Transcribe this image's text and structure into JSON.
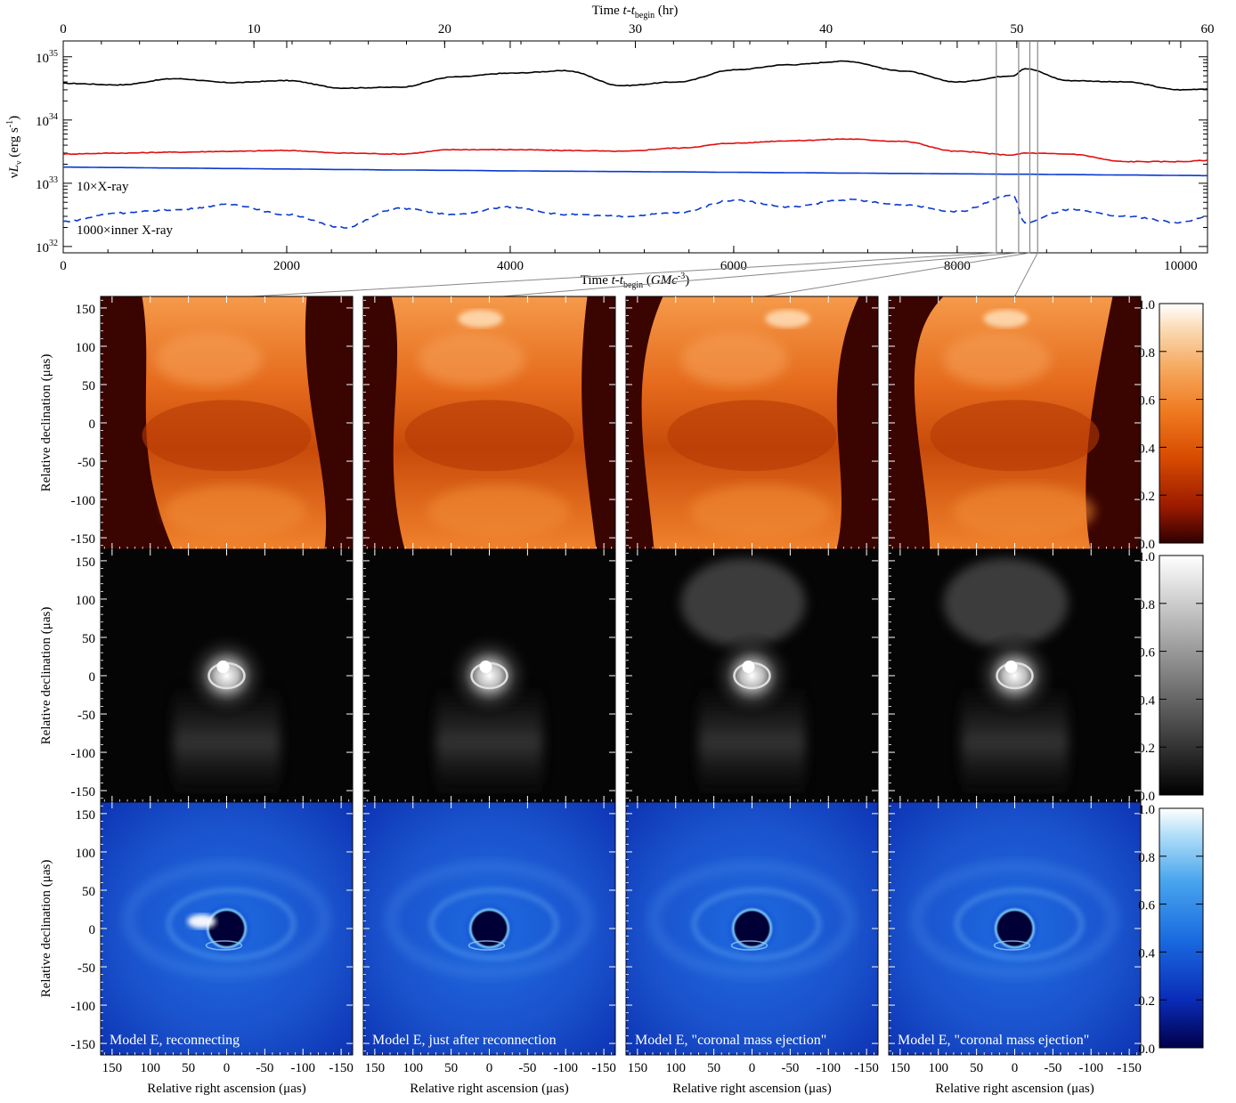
{
  "light_curve": {
    "top_axis": {
      "label_main": "Time ",
      "label_t": "t",
      "label_dash": "-",
      "label_tsub_t": "t",
      "label_sub": "begin",
      "label_unit": " (hr)",
      "ticks": [
        "0",
        "10",
        "20",
        "30",
        "40",
        "50",
        "60"
      ],
      "range": [
        0,
        60
      ]
    },
    "bottom_axis": {
      "label_main": "Time ",
      "label_t": "t",
      "label_dash": "-",
      "label_tsub_t": "t",
      "label_sub": "begin",
      "label_unit_open": " (",
      "label_GM": "GMc",
      "label_exp": "-3",
      "label_unit_close": ")",
      "ticks": [
        "0",
        "2000",
        "4000",
        "6000",
        "8000",
        "10000"
      ],
      "range": [
        0,
        10240
      ]
    },
    "y_axis": {
      "label_nu": "ν",
      "label_L": "L",
      "label_sub": "ν",
      "label_unit": " (erg s",
      "label_exp": "-1",
      "label_close": ")",
      "tick_base": [
        "10",
        "10",
        "10",
        "10"
      ],
      "tick_exp": [
        "32",
        "33",
        "34",
        "35"
      ],
      "range_log": [
        31.9,
        35.25
      ],
      "scale": "log"
    },
    "annotations": {
      "xray": "10×X-ray",
      "inner_xray": "1000×inner X-ray"
    },
    "marker_times_M": [
      8350,
      8550,
      8650,
      8720
    ],
    "series_colors": {
      "mm": "#000000",
      "ir": "#e01010",
      "xray": "#0a3ad0",
      "inner": "#0a3ad0"
    }
  },
  "panels": {
    "y_label": "Relative declination (μas)",
    "x_label": "Relative right ascension (μas)",
    "y_ticks": [
      "150",
      "100",
      "50",
      "0",
      "-50",
      "-100",
      "-150"
    ],
    "x_ticks": [
      "150",
      "100",
      "50",
      "0",
      "-50",
      "-100",
      "-150"
    ],
    "captions": [
      "Model E, reconnecting",
      "Model E, just after reconnection",
      "Model E, \"coronal mass ejection\"",
      "Model E, \"coronal mass ejection\""
    ],
    "colorbar_ticks": [
      "1.0",
      "0.8",
      "0.6",
      "0.4",
      "0.2",
      "0.0"
    ],
    "row_colormaps": [
      "hot-orange",
      "grayscale",
      "blue"
    ]
  },
  "chart_data": [
    {
      "type": "line",
      "title": "",
      "xlabel": "Time t-t_begin (GMc^-3)",
      "x2label": "Time t-t_begin (hr)",
      "ylabel": "νL_ν (erg s^-1)",
      "xlim": [
        0,
        10240
      ],
      "ylim": [
        1e+32,
        1.8e+35
      ],
      "yscale": "log",
      "grid": false,
      "x": [
        0,
        500,
        1000,
        1500,
        2000,
        2500,
        3000,
        3500,
        4000,
        4500,
        5000,
        5500,
        6000,
        6500,
        7000,
        7500,
        8000,
        8500,
        8600,
        9000,
        9500,
        10000,
        10240
      ],
      "series": [
        {
          "name": "",
          "style": "solid",
          "color": "#000000",
          "values": [
            3.8e+34,
            3.6e+34,
            4.5e+34,
            3.9e+34,
            4.2e+34,
            3.2e+34,
            3.3e+34,
            4.8e+34,
            5.5e+34,
            6e+34,
            3.5e+34,
            4e+34,
            6.2e+34,
            7.5e+34,
            8.5e+34,
            6e+34,
            4e+34,
            5e+34,
            6.5e+34,
            4.2e+34,
            4e+34,
            3e+34,
            3.1e+34
          ]
        },
        {
          "name": "",
          "style": "solid",
          "color": "#e01010",
          "values": [
            2.9e+33,
            3e+33,
            3.1e+33,
            3.2e+33,
            3.3e+33,
            3e+33,
            2.9e+33,
            3.4e+33,
            3.4e+33,
            3.3e+33,
            3.2e+33,
            3.6e+33,
            4.3e+33,
            4.7e+33,
            5e+33,
            4.6e+33,
            3.2e+33,
            2.8e+33,
            3e+33,
            2.9e+33,
            2.2e+33,
            2.2e+33,
            2.3e+33
          ]
        },
        {
          "name": "10×X-ray",
          "style": "solid",
          "color": "#0a3ad0",
          "values": [
            1.8e+33,
            1.77e+33,
            1.74e+33,
            1.71e+33,
            1.68e+33,
            1.65e+33,
            1.62e+33,
            1.6e+33,
            1.57e+33,
            1.55e+33,
            1.53e+33,
            1.51e+33,
            1.49e+33,
            1.47e+33,
            1.45e+33,
            1.43e+33,
            1.41e+33,
            1.39e+33,
            1.39e+33,
            1.37e+33,
            1.35e+33,
            1.33e+33,
            1.32e+33
          ]
        },
        {
          "name": "1000×inner X-ray",
          "style": "dashed",
          "color": "#0a3ad0",
          "values": [
            2.5e+32,
            3.4e+32,
            3.8e+32,
            4.6e+32,
            3.2e+32,
            2e+32,
            4e+32,
            3.2e+32,
            4.2e+32,
            3.2e+32,
            3e+32,
            3.4e+32,
            5.4e+32,
            4.2e+32,
            5.5e+32,
            4.6e+32,
            3.6e+32,
            6.5e+32,
            2.4e+32,
            3.8e+32,
            3e+32,
            2.4e+32,
            3e+32
          ]
        }
      ]
    }
  ]
}
